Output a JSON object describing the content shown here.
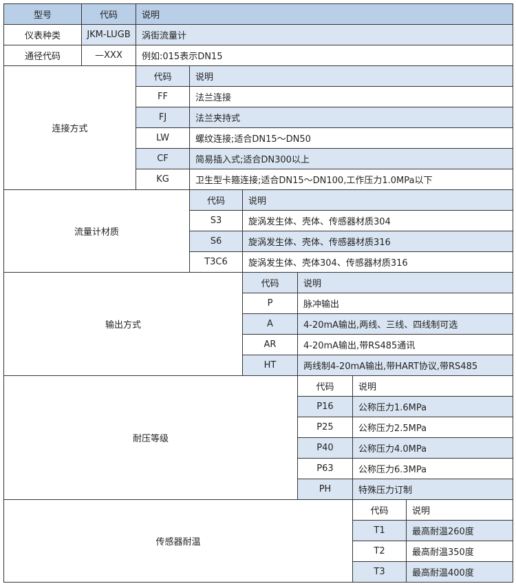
{
  "header": {
    "model": "型号",
    "code": "代码",
    "desc": "说明"
  },
  "rows": [
    {
      "label": "仪表种类",
      "code": "JKM-LUGB",
      "desc": "涡街流量计"
    },
    {
      "label": "通径代码",
      "code": "—XXX",
      "desc": "例如:015表示DN15"
    }
  ],
  "colors": {
    "header": "#b9cfe8",
    "light": "#dae5f3",
    "border": "#333333"
  },
  "sections": [
    {
      "label": "连接方式",
      "code_header": "代码",
      "desc_header": "说明",
      "items": [
        {
          "code": "FF",
          "desc": "法兰连接"
        },
        {
          "code": "FJ",
          "desc": "法兰夹持式"
        },
        {
          "code": "LW",
          "desc": "螺纹连接;适合DN15～DN50"
        },
        {
          "code": "CF",
          "desc": "简易插入式;适合DN300以上"
        },
        {
          "code": "KG",
          "desc": "卫生型卡箍连接;适合DN15～DN100,工作压力1.0MPa以下"
        }
      ]
    },
    {
      "label": "流量计材质",
      "code_header": "代码",
      "desc_header": "说明",
      "items": [
        {
          "code": "S3",
          "desc": "旋涡发生体、壳体、传感器材质304"
        },
        {
          "code": "S6",
          "desc": "旋涡发生体、壳体、传感器材质316"
        },
        {
          "code": "T3C6",
          "desc": "旋涡发生体、壳体304、传感器材质316"
        }
      ]
    },
    {
      "label": "输出方式",
      "code_header": "代码",
      "desc_header": "说明",
      "items": [
        {
          "code": "P",
          "desc": "脉冲输出"
        },
        {
          "code": "A",
          "desc": "4-20mA输出,两线、三线、四线制可选"
        },
        {
          "code": "AR",
          "desc": "4-20mA输出,带RS485通讯"
        },
        {
          "code": "HT",
          "desc": "两线制4-20mA输出,带HART协议,带RS485"
        }
      ]
    },
    {
      "label": "耐压等级",
      "code_header": "代码",
      "desc_header": "说明",
      "items": [
        {
          "code": "P16",
          "desc": "公称压力1.6MPa"
        },
        {
          "code": "P25",
          "desc": "公称压力2.5MPa"
        },
        {
          "code": "P40",
          "desc": "公称压力4.0MPa"
        },
        {
          "code": "P63",
          "desc": "公称压力6.3MPa"
        },
        {
          "code": "PH",
          "desc": "特殊压力订制"
        }
      ]
    },
    {
      "label": "传感器耐温",
      "code_header": "代码",
      "desc_header": "说明",
      "items": [
        {
          "code": "T1",
          "desc": "最高耐温260度"
        },
        {
          "code": "T2",
          "desc": "最高耐温350度"
        },
        {
          "code": "T3",
          "desc": "最高耐温400度"
        }
      ]
    }
  ]
}
